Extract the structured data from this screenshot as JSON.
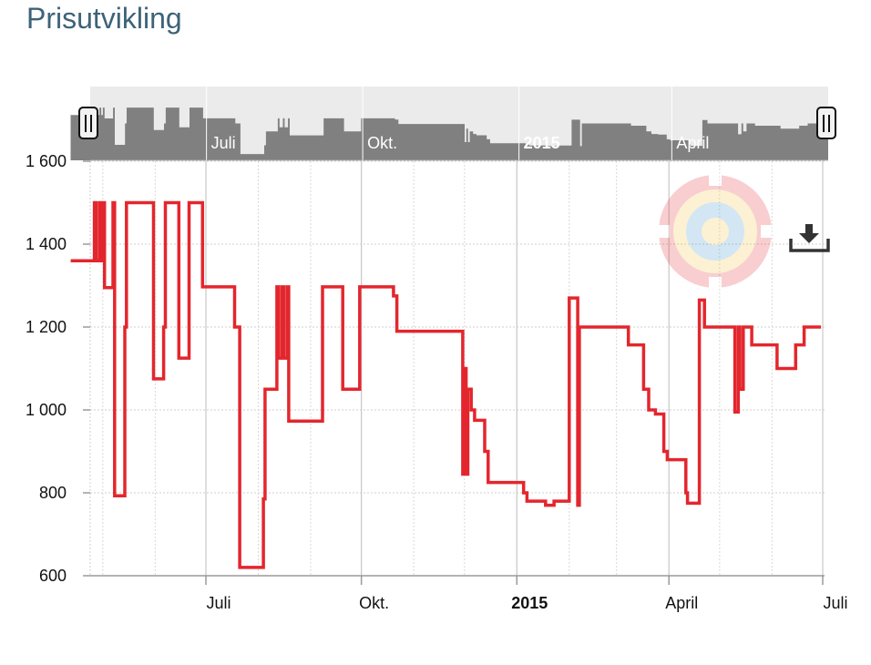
{
  "page": {
    "title": "Prisutvikling"
  },
  "colors": {
    "series": "#e3262d",
    "navigator_fill": "#808080",
    "navigator_bg": "#ebebeb",
    "title": "#3d6378"
  },
  "icons": {
    "download": "download-icon",
    "logo": "target-logo-icon"
  },
  "chart_data": {
    "type": "line",
    "step": true,
    "title": "",
    "xlabel": "",
    "ylabel": "",
    "x_range": [
      "2014-04-12",
      "2015-06-30"
    ],
    "ylim": [
      600,
      1600
    ],
    "y_ticks": [
      {
        "value": 600,
        "label": "600"
      },
      {
        "value": 800,
        "label": "800"
      },
      {
        "value": 1000,
        "label": "1 000"
      },
      {
        "value": 1200,
        "label": "1 200"
      },
      {
        "value": 1400,
        "label": "1 400"
      },
      {
        "value": 1600,
        "label": "1 600"
      }
    ],
    "x_ticks": [
      {
        "date": "2014-07-01",
        "label": "Juli",
        "bold": false
      },
      {
        "date": "2014-10-01",
        "label": "Okt.",
        "bold": false
      },
      {
        "date": "2015-01-01",
        "label": "2015",
        "bold": true
      },
      {
        "date": "2015-04-01",
        "label": "April",
        "bold": false
      },
      {
        "date": "2015-07-01",
        "label": "Juli",
        "bold": false
      }
    ],
    "grid": true,
    "legend": "none",
    "navigator": true,
    "series": [
      {
        "points": [
          [
            "2014-04-12",
            1360
          ],
          [
            "2014-04-25",
            1360
          ],
          [
            "2014-04-26",
            1500
          ],
          [
            "2014-04-27",
            1360
          ],
          [
            "2014-04-29",
            1500
          ],
          [
            "2014-04-30",
            1360
          ],
          [
            "2014-05-01",
            1500
          ],
          [
            "2014-05-02",
            1295
          ],
          [
            "2014-05-06",
            1295
          ],
          [
            "2014-05-07",
            1500
          ],
          [
            "2014-05-08",
            793
          ],
          [
            "2014-05-13",
            793
          ],
          [
            "2014-05-14",
            1200
          ],
          [
            "2014-05-15",
            1500
          ],
          [
            "2014-05-31",
            1075
          ],
          [
            "2014-06-05",
            1075
          ],
          [
            "2014-06-06",
            1200
          ],
          [
            "2014-06-07",
            1500
          ],
          [
            "2014-06-15",
            1125
          ],
          [
            "2014-06-20",
            1125
          ],
          [
            "2014-06-21",
            1500
          ],
          [
            "2014-06-29",
            1297
          ],
          [
            "2014-07-17",
            1297
          ],
          [
            "2014-07-18",
            1200
          ],
          [
            "2014-07-21",
            620
          ],
          [
            "2014-08-03",
            620
          ],
          [
            "2014-08-04",
            785
          ],
          [
            "2014-08-05",
            1050
          ],
          [
            "2014-08-11",
            1050
          ],
          [
            "2014-08-12",
            1297
          ],
          [
            "2014-08-13",
            1125
          ],
          [
            "2014-08-15",
            1297
          ],
          [
            "2014-08-16",
            1125
          ],
          [
            "2014-08-18",
            1297
          ],
          [
            "2014-08-19",
            973
          ],
          [
            "2014-09-07",
            973
          ],
          [
            "2014-09-08",
            1297
          ],
          [
            "2014-09-20",
            1050
          ],
          [
            "2014-09-29",
            1050
          ],
          [
            "2014-09-30",
            1297
          ],
          [
            "2014-10-20",
            1275
          ],
          [
            "2014-10-22",
            1190
          ],
          [
            "2014-11-29",
            1190
          ],
          [
            "2014-11-30",
            845
          ],
          [
            "2014-12-01",
            1100
          ],
          [
            "2014-12-02",
            845
          ],
          [
            "2014-12-03",
            1050
          ],
          [
            "2014-12-05",
            1000
          ],
          [
            "2014-12-07",
            975
          ],
          [
            "2014-12-12",
            975
          ],
          [
            "2014-12-13",
            900
          ],
          [
            "2014-12-15",
            825
          ],
          [
            "2014-12-20",
            825
          ],
          [
            "2014-12-31",
            825
          ],
          [
            "2015-01-05",
            800
          ],
          [
            "2015-01-07",
            780
          ],
          [
            "2015-01-16",
            780
          ],
          [
            "2015-01-18",
            770
          ],
          [
            "2015-01-23",
            780
          ],
          [
            "2015-01-31",
            780
          ],
          [
            "2015-02-01",
            1270
          ],
          [
            "2015-02-06",
            770
          ],
          [
            "2015-02-07",
            1200
          ],
          [
            "2015-03-07",
            1200
          ],
          [
            "2015-03-08",
            1157
          ],
          [
            "2015-03-16",
            1157
          ],
          [
            "2015-03-17",
            1050
          ],
          [
            "2015-03-20",
            1000
          ],
          [
            "2015-03-24",
            990
          ],
          [
            "2015-03-28",
            990
          ],
          [
            "2015-03-29",
            900
          ],
          [
            "2015-03-31",
            880
          ],
          [
            "2015-04-10",
            880
          ],
          [
            "2015-04-11",
            800
          ],
          [
            "2015-04-12",
            775
          ],
          [
            "2015-04-18",
            775
          ],
          [
            "2015-04-19",
            1265
          ],
          [
            "2015-04-22",
            1200
          ],
          [
            "2015-05-09",
            1200
          ],
          [
            "2015-05-10",
            995
          ],
          [
            "2015-05-12",
            1200
          ],
          [
            "2015-05-13",
            1050
          ],
          [
            "2015-05-15",
            1200
          ],
          [
            "2015-05-20",
            1157
          ],
          [
            "2015-06-03",
            1157
          ],
          [
            "2015-06-04",
            1100
          ],
          [
            "2015-06-14",
            1100
          ],
          [
            "2015-06-15",
            1157
          ],
          [
            "2015-06-19",
            1157
          ],
          [
            "2015-06-20",
            1200
          ],
          [
            "2015-06-30",
            1200
          ]
        ]
      }
    ]
  }
}
